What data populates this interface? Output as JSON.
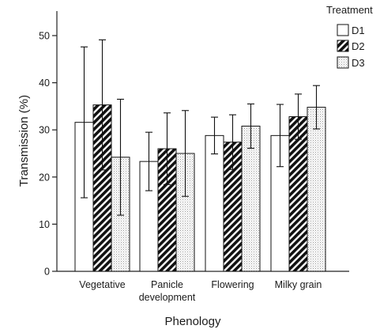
{
  "chart_data": {
    "type": "bar",
    "xlabel": "Phenology",
    "ylabel": "Transmission (%)",
    "ylim": [
      0,
      55
    ],
    "yticks": [
      0,
      10,
      20,
      30,
      40,
      50
    ],
    "categories": [
      {
        "lines": [
          "Vegetative"
        ]
      },
      {
        "lines": [
          "Panicle",
          "development"
        ]
      },
      {
        "lines": [
          "Flowering"
        ]
      },
      {
        "lines": [
          "Milky grain"
        ]
      }
    ],
    "legend": {
      "title": "Treatment",
      "position": "top-right"
    },
    "series": [
      {
        "name": "D1",
        "pattern": "plain",
        "values": [
          31.6,
          23.3,
          28.8,
          28.8
        ],
        "errors": [
          16.0,
          6.2,
          3.9,
          6.6
        ]
      },
      {
        "name": "D2",
        "pattern": "hatched",
        "values": [
          35.3,
          26.0,
          27.4,
          32.8
        ],
        "errors": [
          13.8,
          7.6,
          5.8,
          4.8
        ]
      },
      {
        "name": "D3",
        "pattern": "dotted",
        "values": [
          24.2,
          25.0,
          30.8,
          34.8
        ],
        "errors": [
          12.3,
          9.1,
          4.7,
          4.6
        ]
      }
    ]
  }
}
